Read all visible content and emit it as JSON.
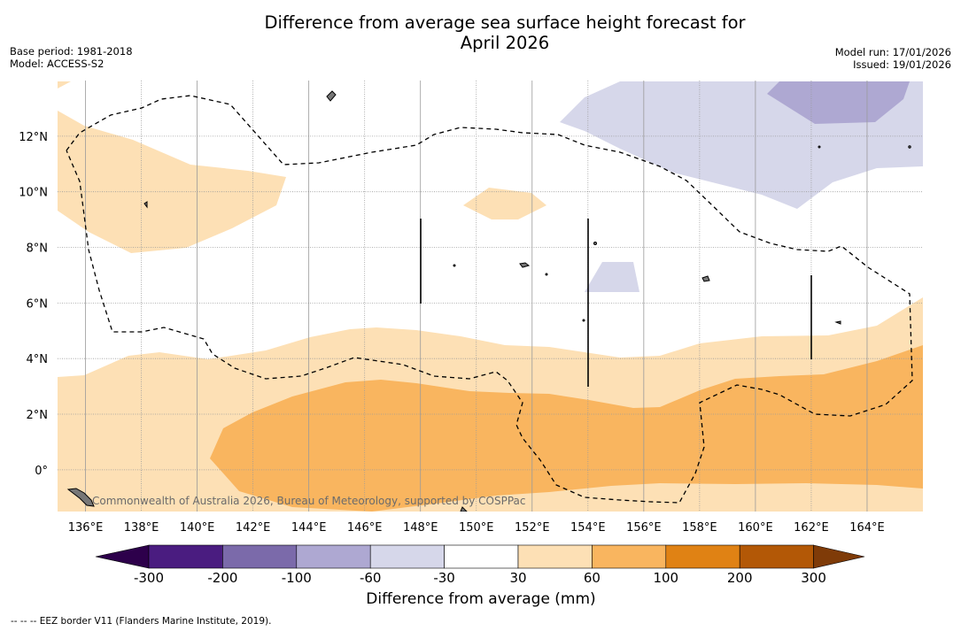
{
  "header": {
    "title_line1": "Difference from average sea surface height forecast for",
    "title_line2": "April 2026",
    "base_period": "Base period: 1981-2018",
    "model": "Model: ACCESS-S2",
    "model_run": "Model run: 17/01/2026",
    "issued": "Issued: 19/01/2026"
  },
  "map": {
    "lon_labels": [
      "136°E",
      "138°E",
      "140°E",
      "142°E",
      "144°E",
      "146°E",
      "148°E",
      "150°E",
      "152°E",
      "154°E",
      "156°E",
      "158°E",
      "160°E",
      "162°E",
      "164°E"
    ],
    "lon_values": [
      136,
      138,
      140,
      142,
      144,
      146,
      148,
      150,
      152,
      154,
      156,
      158,
      160,
      162,
      164
    ],
    "lat_labels": [
      "12°N",
      "10°N",
      "8°N",
      "6°N",
      "4°N",
      "2°N",
      "0°"
    ],
    "lat_values": [
      12,
      10,
      8,
      6,
      4,
      2,
      0
    ],
    "lon_range": [
      135,
      166
    ],
    "lat_range": [
      -1.5,
      14
    ],
    "watermark": "Commonwealth of Australia 2026, Bureau of Meteorology, supported by COSPPac"
  },
  "legend": {
    "title": "Difference from average (mm)",
    "tick_labels": [
      "-300",
      "-200",
      "-100",
      "-60",
      "-30",
      "30",
      "60",
      "100",
      "200",
      "300"
    ],
    "colors": [
      "#4a1c80",
      "#7b6aaa",
      "#aea8d2",
      "#d6d7ea",
      "#ffffff",
      "#fde0b5",
      "#f9b55f",
      "#e08214",
      "#b35806"
    ],
    "extend_low_color": "#2d004b",
    "extend_high_color": "#7f3b08",
    "footnote": "--  --  -- EEZ border V11 (Flanders Marine Institute, 2019)."
  }
}
